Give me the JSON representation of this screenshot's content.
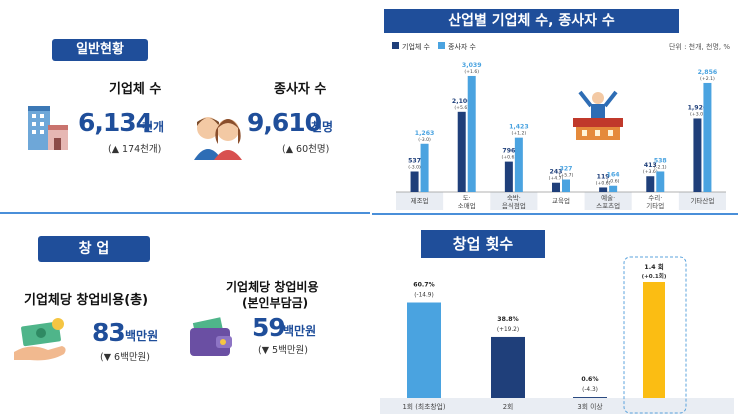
{
  "general": {
    "title": "일반현황",
    "firms": {
      "label": "기업체 수",
      "value": "6,134",
      "unit": "천개",
      "change": "(▲ 174천개)"
    },
    "workers": {
      "label": "종사자 수",
      "value": "9,610",
      "unit": "천명",
      "change": "(▲ 60천명)"
    }
  },
  "startup": {
    "title": "창 업",
    "total_cost": {
      "label": "기업체당 창업비용(총)",
      "value": "83",
      "unit": "백만원",
      "change": "(▼ 6백만원)"
    },
    "own_cost": {
      "label_line1": "기업체당 창업비용",
      "label_line2": "(본인부담금)",
      "value": "59",
      "unit": "백만원",
      "change": "(▼ 5백만원)"
    }
  },
  "colors": {
    "navy": "#1f3f7a",
    "light_blue": "#4aa3e0",
    "yellow": "#fbbd13",
    "accent": "#1f4e9a"
  },
  "icons": [
    "building-icon",
    "people-icon",
    "money-hand-icon",
    "wallet-icon",
    "celebration-icon"
  ],
  "chart_data": [
    {
      "type": "bar",
      "title": "산업별 기업체 수, 종사자 수",
      "unit_note": "단위 : 천개, 천명, %",
      "categories": [
        "제조업",
        "도·소매업",
        "숙박·음식점업",
        "교육업",
        "예술·스포츠업",
        "수리·기타업",
        "기타산업"
      ],
      "series": [
        {
          "name": "기업체 수",
          "values": [
            537,
            2100,
            796,
            243,
            119,
            413,
            1926
          ],
          "changes": [
            "(-3.0)",
            "(+5.6)",
            "(+0.6)",
            "(+4.7)",
            "(+0.6)",
            "(+3.6)",
            "(+3.0)"
          ]
        },
        {
          "name": "종사자 수",
          "values": [
            1263,
            3039,
            1423,
            327,
            164,
            538,
            2856
          ],
          "changes": [
            "(-3.0)",
            "(+1.6)",
            "(+1.2)",
            "(+5.7)",
            "(-0.6)",
            "(-2.1)",
            "(+2.1)"
          ]
        }
      ],
      "value_labels": {
        "기업체 수": [
          "537",
          "2,100",
          "796",
          "243",
          "119",
          "413",
          "1,926"
        ],
        "종사자 수": [
          "1,263",
          "3,039",
          "1,423",
          "327",
          "164",
          "538",
          "2,856"
        ]
      },
      "ylim": [
        0,
        3300
      ],
      "legend": "top-left"
    },
    {
      "type": "bar",
      "title": "창업 횟수",
      "categories": [
        "1회 (최초창업)",
        "2회",
        "3회 이상"
      ],
      "values": [
        60.7,
        38.8,
        0.6
      ],
      "value_labels": [
        "60.7%",
        "38.8%",
        "0.6%"
      ],
      "changes": [
        "(-14.9)",
        "(+19.2)",
        "(-4.3)"
      ],
      "highlight": {
        "category": "",
        "value": 1.4,
        "value_label": "1.4 회",
        "change": "(+0.1회)"
      },
      "ylim": [
        0,
        75
      ]
    }
  ]
}
